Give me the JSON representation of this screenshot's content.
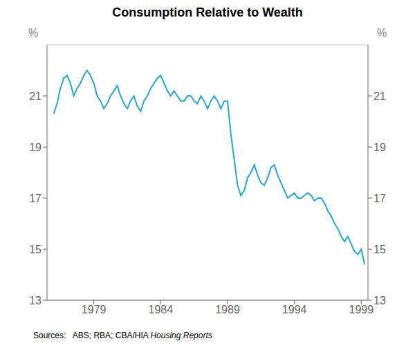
{
  "chart_data": {
    "type": "line",
    "title": "Consumption Relative to Wealth",
    "y_label": "%",
    "y2_label": "%",
    "annotations": [
      "Sources:   ABS; RBA; CBA/HIA",
      "Housing Reports"
    ],
    "color": "#29a3d4",
    "grid": true,
    "xlim": [
      1975.5,
      1999.5
    ],
    "xticks": [
      1979,
      1984,
      1989,
      1994,
      1999
    ],
    "ylim": [
      13,
      23
    ],
    "yticks": [
      13,
      15,
      17,
      19,
      21
    ],
    "y2lim": [
      13,
      23
    ],
    "y2ticks": [
      13,
      15,
      17,
      19,
      21
    ],
    "x": [
      1976.0,
      1976.25,
      1976.5,
      1976.75,
      1977.0,
      1977.25,
      1977.5,
      1977.75,
      1978.0,
      1978.25,
      1978.5,
      1978.75,
      1979.0,
      1979.25,
      1979.5,
      1979.75,
      1980.0,
      1980.25,
      1980.5,
      1980.75,
      1981.0,
      1981.25,
      1981.5,
      1981.75,
      1982.0,
      1982.25,
      1982.5,
      1982.75,
      1983.0,
      1983.25,
      1983.5,
      1983.75,
      1984.0,
      1984.25,
      1984.5,
      1984.75,
      1985.0,
      1985.25,
      1985.5,
      1985.75,
      1986.0,
      1986.25,
      1986.5,
      1986.75,
      1987.0,
      1987.25,
      1987.5,
      1987.75,
      1988.0,
      1988.25,
      1988.5,
      1988.75,
      1989.0,
      1989.25,
      1989.5,
      1989.75,
      1990.0,
      1990.25,
      1990.5,
      1990.75,
      1991.0,
      1991.25,
      1991.5,
      1991.75,
      1992.0,
      1992.25,
      1992.5,
      1992.75,
      1993.0,
      1993.25,
      1993.5,
      1993.75,
      1994.0,
      1994.25,
      1994.5,
      1994.75,
      1995.0,
      1995.25,
      1995.5,
      1995.75,
      1996.0,
      1996.25,
      1996.5,
      1996.75,
      1997.0,
      1997.25,
      1997.5,
      1997.75,
      1998.0,
      1998.25,
      1998.5,
      1998.75,
      1999.0,
      1999.25
    ],
    "values": [
      20.3,
      20.7,
      21.3,
      21.7,
      21.8,
      21.5,
      21.0,
      21.3,
      21.5,
      21.8,
      22.0,
      21.8,
      21.5,
      21.0,
      20.8,
      20.5,
      20.7,
      21.0,
      21.2,
      21.4,
      21.0,
      20.7,
      20.5,
      20.8,
      21.0,
      20.6,
      20.4,
      20.8,
      21.0,
      21.3,
      21.5,
      21.7,
      21.8,
      21.5,
      21.2,
      21.0,
      21.2,
      21.0,
      20.8,
      20.8,
      21.0,
      21.0,
      20.8,
      20.7,
      21.0,
      20.8,
      20.5,
      20.8,
      21.0,
      20.8,
      20.5,
      20.8,
      20.8,
      19.5,
      18.5,
      17.5,
      17.1,
      17.3,
      17.8,
      18.0,
      18.3,
      17.9,
      17.6,
      17.5,
      17.8,
      18.2,
      18.3,
      17.9,
      17.6,
      17.3,
      17.0,
      17.1,
      17.2,
      17.0,
      17.0,
      17.1,
      17.2,
      17.1,
      16.9,
      17.0,
      17.0,
      16.8,
      16.5,
      16.3,
      16.0,
      15.8,
      15.5,
      15.3,
      15.5,
      15.2,
      14.9,
      14.8,
      15.0,
      14.4
    ]
  }
}
